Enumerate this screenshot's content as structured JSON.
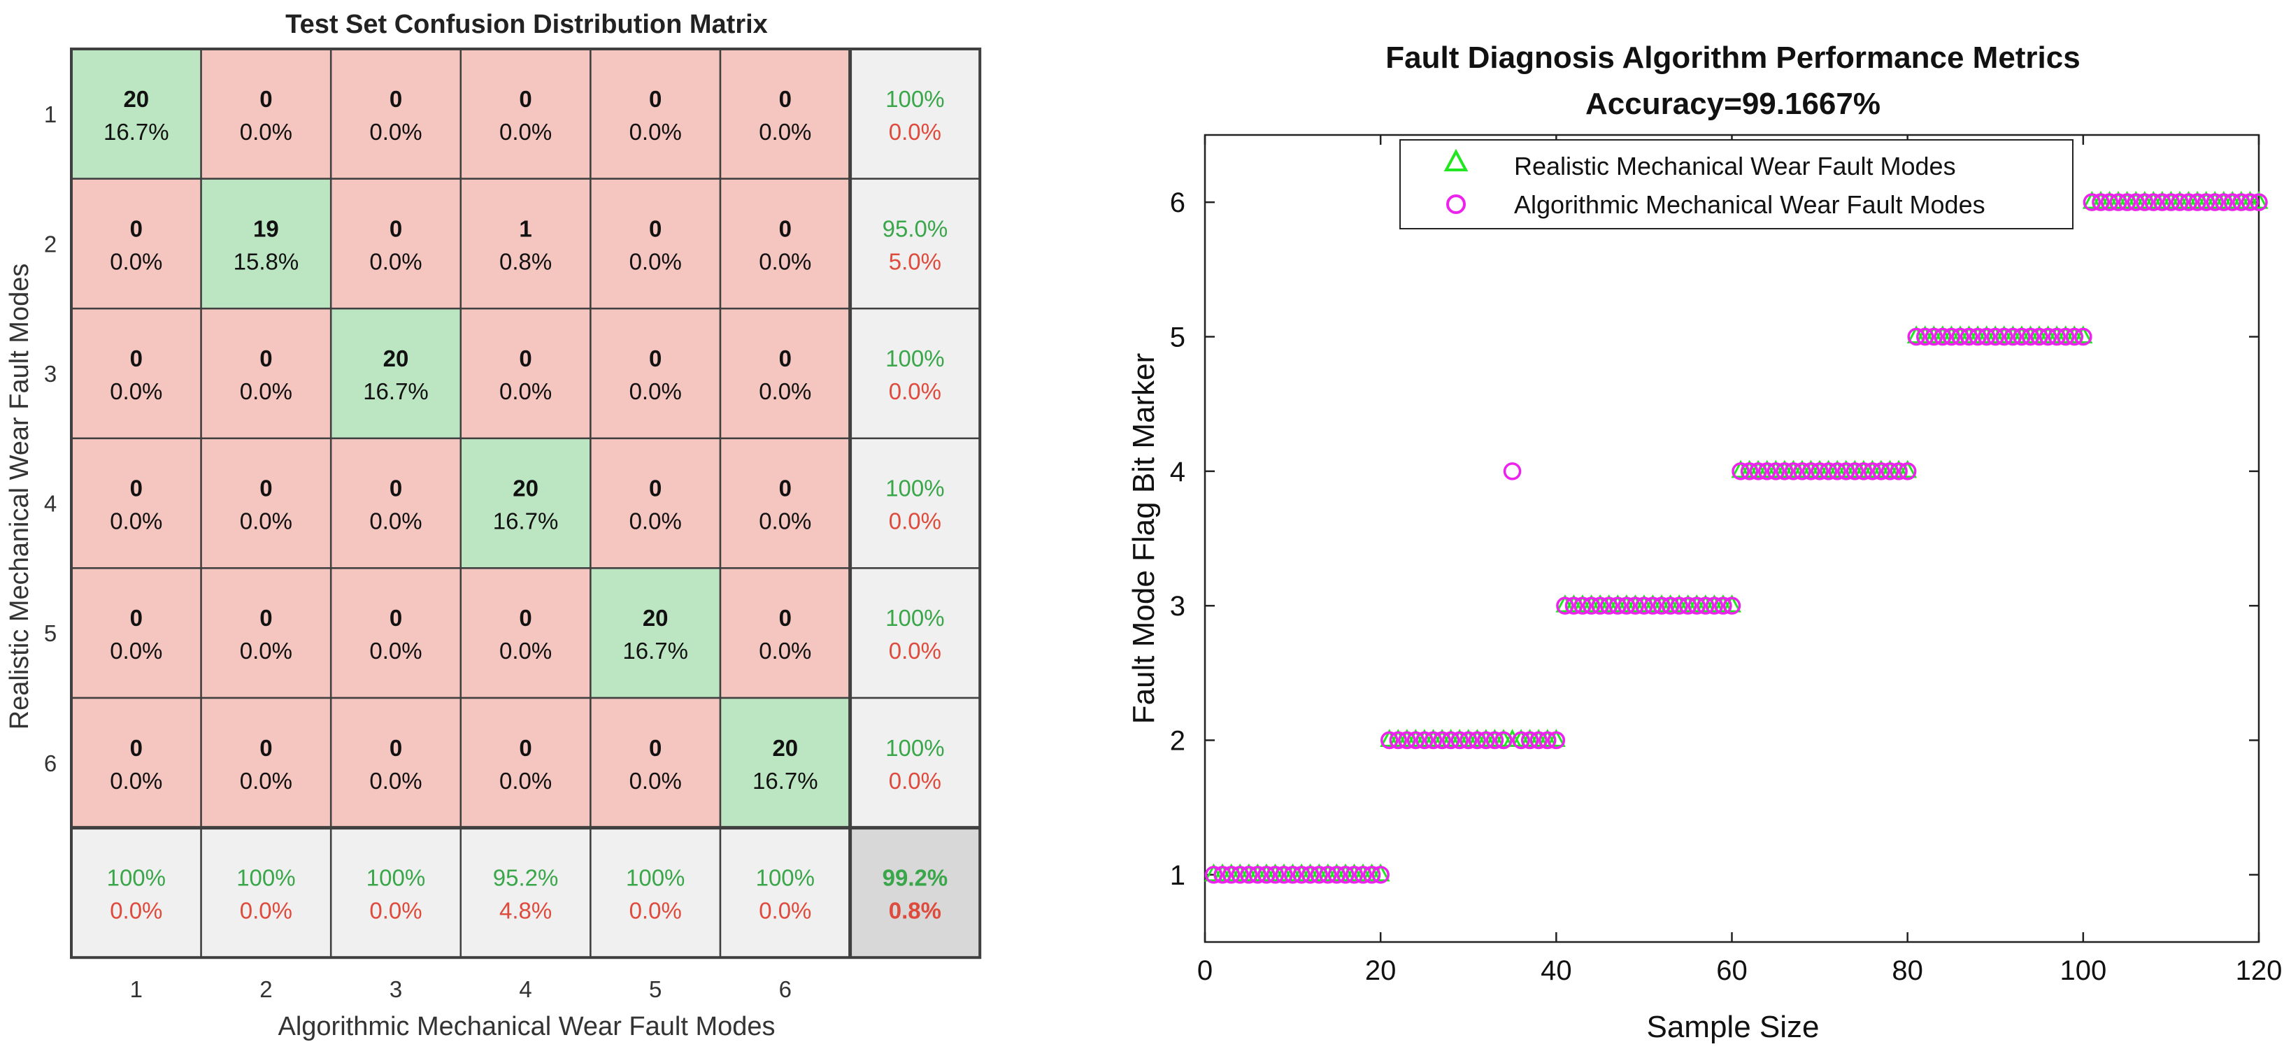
{
  "chart_data": [
    {
      "type": "heatmap",
      "subtype": "confusion_matrix",
      "title": "Test Set Confusion Distribution Matrix",
      "xlabel": "Algorithmic Mechanical Wear Fault Modes",
      "ylabel": "Realistic Mechanical Wear Fault Modes",
      "row_labels": [
        "1",
        "2",
        "3",
        "4",
        "5",
        "6"
      ],
      "col_labels": [
        "1",
        "2",
        "3",
        "4",
        "5",
        "6"
      ],
      "counts": [
        [
          20,
          0,
          0,
          0,
          0,
          0
        ],
        [
          0,
          19,
          0,
          1,
          0,
          0
        ],
        [
          0,
          0,
          20,
          0,
          0,
          0
        ],
        [
          0,
          0,
          0,
          20,
          0,
          0
        ],
        [
          0,
          0,
          0,
          0,
          20,
          0
        ],
        [
          0,
          0,
          0,
          0,
          0,
          20
        ]
      ],
      "percents": [
        [
          "16.7%",
          "0.0%",
          "0.0%",
          "0.0%",
          "0.0%",
          "0.0%"
        ],
        [
          "0.0%",
          "15.8%",
          "0.0%",
          "0.8%",
          "0.0%",
          "0.0%"
        ],
        [
          "0.0%",
          "0.0%",
          "16.7%",
          "0.0%",
          "0.0%",
          "0.0%"
        ],
        [
          "0.0%",
          "0.0%",
          "0.0%",
          "16.7%",
          "0.0%",
          "0.0%"
        ],
        [
          "0.0%",
          "0.0%",
          "0.0%",
          "0.0%",
          "16.7%",
          "0.0%"
        ],
        [
          "0.0%",
          "0.0%",
          "0.0%",
          "0.0%",
          "0.0%",
          "16.7%"
        ]
      ],
      "row_summary": [
        {
          "correct": "100%",
          "wrong": "0.0%"
        },
        {
          "correct": "95.0%",
          "wrong": "5.0%"
        },
        {
          "correct": "100%",
          "wrong": "0.0%"
        },
        {
          "correct": "100%",
          "wrong": "0.0%"
        },
        {
          "correct": "100%",
          "wrong": "0.0%"
        },
        {
          "correct": "100%",
          "wrong": "0.0%"
        }
      ],
      "col_summary": [
        {
          "correct": "100%",
          "wrong": "0.0%"
        },
        {
          "correct": "100%",
          "wrong": "0.0%"
        },
        {
          "correct": "100%",
          "wrong": "0.0%"
        },
        {
          "correct": "95.2%",
          "wrong": "4.8%"
        },
        {
          "correct": "100%",
          "wrong": "0.0%"
        },
        {
          "correct": "100%",
          "wrong": "0.0%"
        }
      ],
      "overall": {
        "correct": "99.2%",
        "wrong": "0.8%"
      },
      "colors": {
        "diag": "#bce5c2",
        "offdiag": "#f5c5bf",
        "summary": "#f0f0f0",
        "overall": "#d8d8d8",
        "good_text": "#3aa64a",
        "bad_text": "#de4a3c",
        "grid": "#404040"
      }
    },
    {
      "type": "scatter",
      "title": "Fault Diagnosis Algorithm Performance Metrics",
      "subtitle": "Accuracy=99.1667%",
      "xlabel": "Sample Size",
      "ylabel": "Fault Mode Flag Bit Marker",
      "xlim": [
        0,
        120
      ],
      "ylim": [
        0.5,
        6.5
      ],
      "xticks": [
        0,
        20,
        40,
        60,
        80,
        100,
        120
      ],
      "xtick_labels": [
        "0",
        "20",
        "40",
        "60",
        "80",
        "100",
        "120"
      ],
      "yticks": [
        1,
        2,
        3,
        4,
        5,
        6
      ],
      "ytick_labels": [
        "1",
        "2",
        "3",
        "4",
        "5",
        "6"
      ],
      "legend_position": "top-center",
      "series": [
        {
          "name": "Realistic Mechanical Wear Fault Modes",
          "marker": "triangle",
          "color": "#22e622",
          "x_start": 1,
          "values": [
            1,
            1,
            1,
            1,
            1,
            1,
            1,
            1,
            1,
            1,
            1,
            1,
            1,
            1,
            1,
            1,
            1,
            1,
            1,
            1,
            2,
            2,
            2,
            2,
            2,
            2,
            2,
            2,
            2,
            2,
            2,
            2,
            2,
            2,
            2,
            2,
            2,
            2,
            2,
            2,
            3,
            3,
            3,
            3,
            3,
            3,
            3,
            3,
            3,
            3,
            3,
            3,
            3,
            3,
            3,
            3,
            3,
            3,
            3,
            3,
            4,
            4,
            4,
            4,
            4,
            4,
            4,
            4,
            4,
            4,
            4,
            4,
            4,
            4,
            4,
            4,
            4,
            4,
            4,
            4,
            5,
            5,
            5,
            5,
            5,
            5,
            5,
            5,
            5,
            5,
            5,
            5,
            5,
            5,
            5,
            5,
            5,
            5,
            5,
            5,
            6,
            6,
            6,
            6,
            6,
            6,
            6,
            6,
            6,
            6,
            6,
            6,
            6,
            6,
            6,
            6,
            6,
            6,
            6,
            6
          ]
        },
        {
          "name": "Algorithmic Mechanical Wear Fault Modes",
          "marker": "circle",
          "color": "#ee22ee",
          "x_start": 1,
          "values": [
            1,
            1,
            1,
            1,
            1,
            1,
            1,
            1,
            1,
            1,
            1,
            1,
            1,
            1,
            1,
            1,
            1,
            1,
            1,
            1,
            2,
            2,
            2,
            2,
            2,
            2,
            2,
            2,
            2,
            2,
            2,
            2,
            2,
            2,
            4,
            2,
            2,
            2,
            2,
            2,
            3,
            3,
            3,
            3,
            3,
            3,
            3,
            3,
            3,
            3,
            3,
            3,
            3,
            3,
            3,
            3,
            3,
            3,
            3,
            3,
            4,
            4,
            4,
            4,
            4,
            4,
            4,
            4,
            4,
            4,
            4,
            4,
            4,
            4,
            4,
            4,
            4,
            4,
            4,
            4,
            5,
            5,
            5,
            5,
            5,
            5,
            5,
            5,
            5,
            5,
            5,
            5,
            5,
            5,
            5,
            5,
            5,
            5,
            5,
            5,
            6,
            6,
            6,
            6,
            6,
            6,
            6,
            6,
            6,
            6,
            6,
            6,
            6,
            6,
            6,
            6,
            6,
            6,
            6,
            6
          ]
        }
      ]
    }
  ]
}
